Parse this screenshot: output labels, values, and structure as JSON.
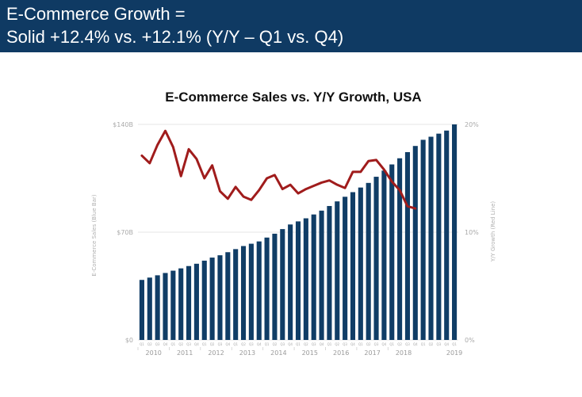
{
  "header": {
    "line1": "E-Commerce Growth =",
    "line2": "Solid +12.4% vs. +12.1% (Y/Y – Q1 vs. Q4)"
  },
  "colors": {
    "header_bg": "#0f3a63",
    "bar": "#103d66",
    "line": "#a01c1c"
  },
  "chart_data": {
    "type": "bar",
    "title": "E-Commerce Sales vs. Y/Y Growth, USA",
    "ylabel": "E-Commerce Sales (Blue Bar)",
    "y2label": "Y/Y Growth (Red Line)",
    "ylim": [
      0,
      140
    ],
    "y_ticks": [
      "$0",
      "$70B",
      "$140B"
    ],
    "y2lim": [
      0,
      20
    ],
    "y2_ticks": [
      "0%",
      "10%",
      "20%"
    ],
    "quarter_labels": [
      "Q1",
      "Q2",
      "Q3",
      "Q4",
      "Q1",
      "Q2",
      "Q3",
      "Q4",
      "Q1",
      "Q2",
      "Q3",
      "Q4",
      "Q1",
      "Q2",
      "Q3",
      "Q4",
      "Q1",
      "Q2",
      "Q3",
      "Q4",
      "Q1",
      "Q2",
      "Q3",
      "Q4",
      "Q1",
      "Q2",
      "Q3",
      "Q4",
      "Q1",
      "Q2",
      "Q3",
      "Q4",
      "Q1",
      "Q2",
      "Q3",
      "Q4",
      "Q1",
      "Q2",
      "Q3",
      "Q4",
      "Q1"
    ],
    "years": [
      "2010",
      "2011",
      "2012",
      "2013",
      "2014",
      "2015",
      "2016",
      "2017",
      "2018",
      "2019"
    ],
    "grid": true,
    "series": [
      {
        "name": "E-Commerce Sales (Blue Bar)",
        "type": "bar",
        "axis": "left",
        "values": [
          39,
          40.5,
          42,
          43.5,
          45,
          46.5,
          48,
          49.5,
          51.5,
          53.5,
          55,
          57,
          59,
          61,
          62.5,
          64,
          66.5,
          69,
          72,
          75,
          77,
          79,
          81.5,
          84,
          87,
          90,
          93,
          96,
          99,
          102,
          106,
          110,
          114,
          118,
          122,
          126,
          130,
          132,
          134,
          136,
          140
        ]
      },
      {
        "name": "Y/Y Growth (Red Line)",
        "type": "line",
        "axis": "right",
        "values": [
          17.1,
          16.4,
          18.1,
          19.4,
          17.9,
          15.2,
          17.7,
          16.8,
          15.0,
          16.2,
          13.8,
          13.1,
          14.2,
          13.3,
          13.0,
          13.9,
          15.0,
          15.3,
          14.0,
          14.4,
          13.6,
          14.0,
          14.3,
          14.6,
          14.8,
          14.4,
          14.1,
          15.6,
          15.6,
          16.6,
          16.7,
          15.8,
          14.7,
          13.9,
          12.4,
          12.2
        ]
      }
    ]
  }
}
